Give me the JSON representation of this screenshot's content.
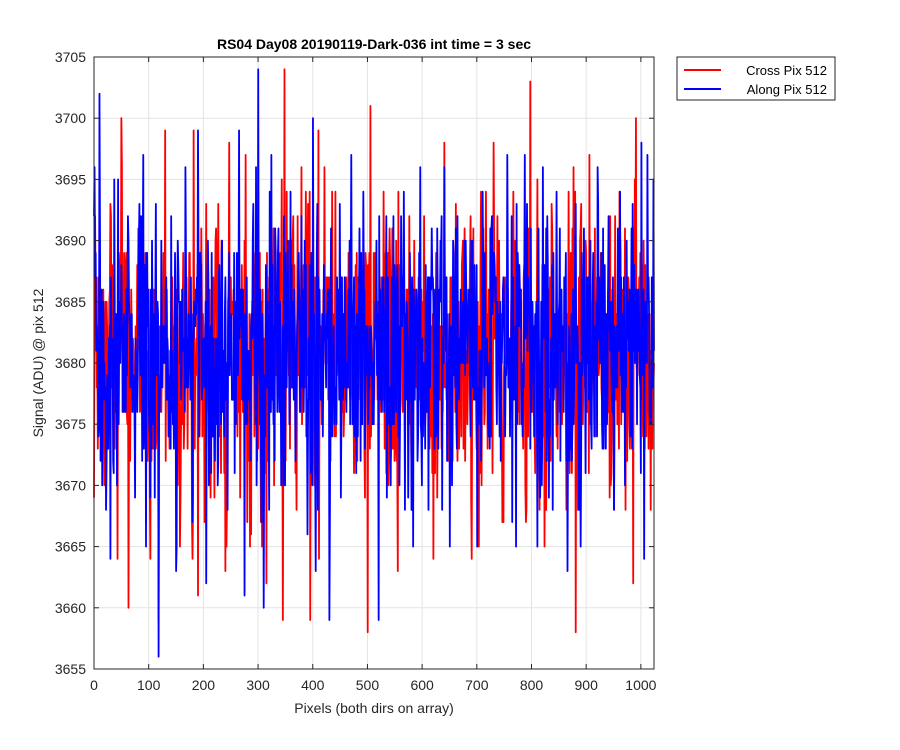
{
  "chart_data": {
    "type": "line",
    "title": "RS04 Day08 20190119-Dark-036 int time = 3 sec",
    "xlabel": "Pixels (both dirs on array)",
    "ylabel": "Signal (ADU) @ pix 512",
    "xlim": [
      0,
      1024
    ],
    "ylim": [
      3655,
      3705
    ],
    "xticks": [
      0,
      100,
      200,
      300,
      400,
      500,
      600,
      700,
      800,
      900,
      1000
    ],
    "yticks": [
      3655,
      3660,
      3665,
      3670,
      3675,
      3680,
      3685,
      3690,
      3695,
      3700,
      3705
    ],
    "xtick_labels": [
      "0",
      "100",
      "200",
      "300",
      "400",
      "500",
      "600",
      "700",
      "800",
      "900",
      "1000"
    ],
    "ytick_labels": [
      "3655",
      "3660",
      "3665",
      "3670",
      "3675",
      "3680",
      "3685",
      "3690",
      "3695",
      "3700",
      "3705"
    ],
    "grid": true,
    "legend_position": "outside-top-right",
    "series": [
      {
        "name": "Cross Pix 512",
        "color": "#ff0000",
        "x": [
          0,
          1024
        ],
        "values": [
          3681,
          3680
        ],
        "n_points": 1024,
        "mean": 3681,
        "std": 6,
        "extremes": [
          [
            0,
            3669
          ],
          [
            30,
            3693
          ],
          [
            43,
            3664
          ],
          [
            50,
            3700
          ],
          [
            63,
            3660
          ],
          [
            118,
            3659
          ],
          [
            130,
            3699
          ],
          [
            180,
            3664
          ],
          [
            182,
            3699
          ],
          [
            190,
            3661
          ],
          [
            240,
            3663
          ],
          [
            247,
            3698
          ],
          [
            280,
            3667
          ],
          [
            345,
            3659
          ],
          [
            348,
            3704
          ],
          [
            395,
            3659
          ],
          [
            410,
            3699
          ],
          [
            500,
            3658
          ],
          [
            505,
            3701
          ],
          [
            555,
            3663
          ],
          [
            620,
            3664
          ],
          [
            640,
            3698
          ],
          [
            690,
            3664
          ],
          [
            730,
            3698
          ],
          [
            790,
            3668
          ],
          [
            797,
            3703
          ],
          [
            810,
            3695
          ],
          [
            880,
            3658
          ],
          [
            905,
            3697
          ],
          [
            985,
            3662
          ],
          [
            990,
            3700
          ],
          [
            1020,
            3673
          ]
        ]
      },
      {
        "name": "Along Pix 512",
        "color": "#0000ff",
        "x": [
          0,
          1024
        ],
        "values": [
          3682,
          3681
        ],
        "n_points": 1024,
        "mean": 3681,
        "std": 6,
        "extremes": [
          [
            0,
            3692
          ],
          [
            10,
            3702
          ],
          [
            22,
            3668
          ],
          [
            90,
            3697
          ],
          [
            95,
            3665
          ],
          [
            118,
            3656
          ],
          [
            150,
            3663
          ],
          [
            190,
            3699
          ],
          [
            205,
            3662
          ],
          [
            265,
            3699
          ],
          [
            275,
            3661
          ],
          [
            300,
            3704
          ],
          [
            310,
            3660
          ],
          [
            320,
            3668
          ],
          [
            400,
            3700
          ],
          [
            405,
            3663
          ],
          [
            430,
            3659
          ],
          [
            470,
            3697
          ],
          [
            520,
            3659
          ],
          [
            640,
            3696
          ],
          [
            650,
            3665
          ],
          [
            700,
            3665
          ],
          [
            755,
            3697
          ],
          [
            810,
            3665
          ],
          [
            820,
            3696
          ],
          [
            865,
            3663
          ],
          [
            920,
            3696
          ],
          [
            1000,
            3698
          ],
          [
            1005,
            3664
          ],
          [
            1022,
            3695
          ]
        ]
      }
    ]
  }
}
